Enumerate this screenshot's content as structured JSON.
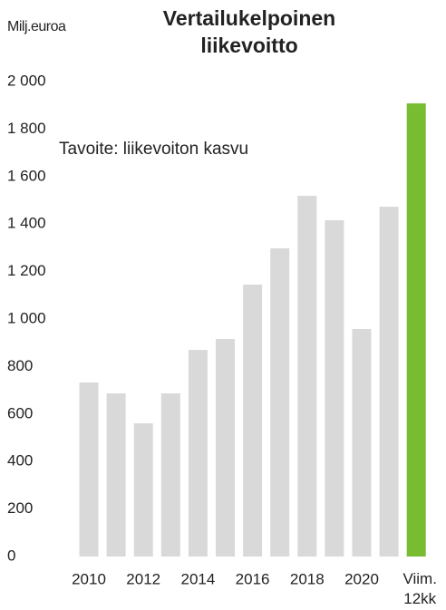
{
  "chart_data": {
    "type": "bar",
    "title": "Vertailukelpoinen\nliikevoitto",
    "y_label": "Milj.euroa",
    "annotation": "Tavoite:  liikevoiton kasvu",
    "categories": [
      "2010",
      null,
      "2012",
      null,
      "2014",
      null,
      "2016",
      null,
      "2018",
      null,
      "2020",
      null,
      "Viim.\n12kk"
    ],
    "values": [
      733,
      687,
      561,
      687,
      870,
      916,
      1145,
      1298,
      1519,
      1416,
      958,
      1473,
      1908
    ],
    "colors": [
      "#d9d9d9",
      "#d9d9d9",
      "#d9d9d9",
      "#d9d9d9",
      "#d9d9d9",
      "#d9d9d9",
      "#d9d9d9",
      "#d9d9d9",
      "#d9d9d9",
      "#d9d9d9",
      "#d9d9d9",
      "#d9d9d9",
      "#77bc31"
    ],
    "ylim": [
      0,
      2000
    ],
    "yticks": [
      0,
      200,
      400,
      600,
      800,
      {
        "value": 1000,
        "label": "1 000"
      },
      {
        "value": 1200,
        "label": "1 200"
      },
      {
        "value": 1400,
        "label": "1 400"
      },
      {
        "value": 1600,
        "label": "1 600"
      },
      {
        "value": 1800,
        "label": "1 800"
      },
      {
        "value": 2000,
        "label": "2 000"
      }
    ],
    "grid": false
  }
}
